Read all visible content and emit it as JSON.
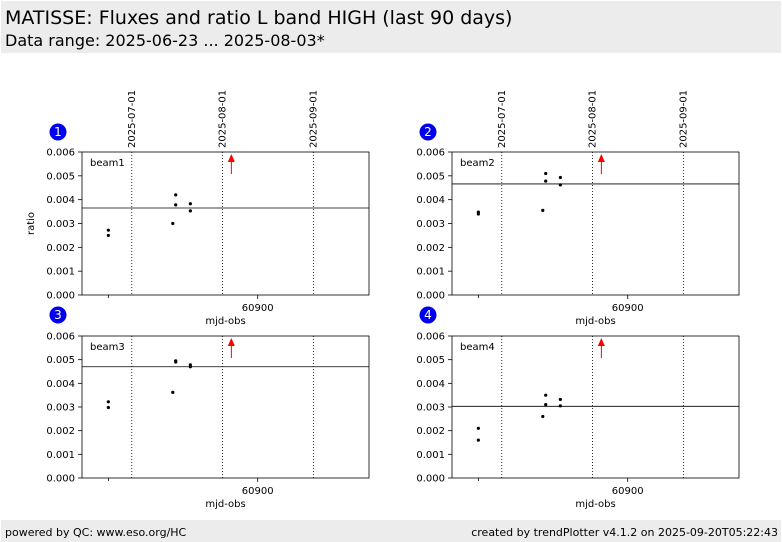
{
  "header": {
    "title": "MATISSE: Fluxes and ratio L band HIGH (last 90 days)",
    "subtitle": "Data range: 2025-06-23 ... 2025-08-03*"
  },
  "footer": {
    "left": "powered by QC: www.eso.org/HC",
    "right": "created by trendPlotter v4.1.2 on 2025-09-20T05:22:43"
  },
  "colors": {
    "header_bg": "#ececec",
    "badge": "#0000ee",
    "points": "#000000",
    "arrow": "#ff0000",
    "reference_line": "#000000"
  },
  "chart_data": [
    {
      "type": "scatter",
      "panel_number": "1",
      "label": "beam1",
      "xlabel": "mjd-obs",
      "ylabel": "ratio",
      "x_tick": 60900,
      "x_tick_label": "60900",
      "xlim": [
        60840,
        60938
      ],
      "ylim": [
        0,
        0.006
      ],
      "y_ticks": [
        "0.000",
        "0.001",
        "0.002",
        "0.003",
        "0.004",
        "0.005",
        "0.006"
      ],
      "date_markers": [
        {
          "x": 60857,
          "label": "2025-07-01"
        },
        {
          "x": 60888,
          "label": "2025-08-01"
        },
        {
          "x": 60919,
          "label": "2025-09-01"
        }
      ],
      "reference_value": 0.00365,
      "out_of_range_arrow_x": 60891,
      "points": [
        {
          "x": 60849,
          "y": 0.00272
        },
        {
          "x": 60849,
          "y": 0.0025
        },
        {
          "x": 60871,
          "y": 0.003
        },
        {
          "x": 60872,
          "y": 0.0042
        },
        {
          "x": 60872,
          "y": 0.00378
        },
        {
          "x": 60877,
          "y": 0.00383
        },
        {
          "x": 60877,
          "y": 0.00353
        }
      ]
    },
    {
      "type": "scatter",
      "panel_number": "2",
      "label": "beam2",
      "xlabel": "mjd-obs",
      "ylabel": "",
      "x_tick": 60900,
      "x_tick_label": "60900",
      "xlim": [
        60840,
        60938
      ],
      "ylim": [
        0,
        0.006
      ],
      "y_ticks": [
        "0.000",
        "0.001",
        "0.002",
        "0.003",
        "0.004",
        "0.005",
        "0.006"
      ],
      "date_markers": [
        {
          "x": 60857,
          "label": "2025-07-01"
        },
        {
          "x": 60888,
          "label": "2025-08-01"
        },
        {
          "x": 60919,
          "label": "2025-09-01"
        }
      ],
      "reference_value": 0.00466,
      "out_of_range_arrow_x": 60891,
      "points": [
        {
          "x": 60849,
          "y": 0.00348
        },
        {
          "x": 60849,
          "y": 0.0034
        },
        {
          "x": 60871,
          "y": 0.00355
        },
        {
          "x": 60872,
          "y": 0.0051
        },
        {
          "x": 60872,
          "y": 0.00478
        },
        {
          "x": 60877,
          "y": 0.00493
        },
        {
          "x": 60877,
          "y": 0.00462
        }
      ]
    },
    {
      "type": "scatter",
      "panel_number": "3",
      "label": "beam3",
      "xlabel": "mjd-obs",
      "ylabel": "",
      "x_tick": 60900,
      "x_tick_label": "60900",
      "xlim": [
        60840,
        60938
      ],
      "ylim": [
        0,
        0.006
      ],
      "y_ticks": [
        "0.000",
        "0.001",
        "0.002",
        "0.003",
        "0.004",
        "0.005",
        "0.006"
      ],
      "date_markers": [
        {
          "x": 60857,
          "label": "2025-07-01"
        },
        {
          "x": 60888,
          "label": "2025-08-01"
        },
        {
          "x": 60919,
          "label": "2025-09-01"
        }
      ],
      "reference_value": 0.0047,
      "out_of_range_arrow_x": 60891,
      "points": [
        {
          "x": 60849,
          "y": 0.00322
        },
        {
          "x": 60849,
          "y": 0.00298
        },
        {
          "x": 60871,
          "y": 0.00362
        },
        {
          "x": 60872,
          "y": 0.00495
        },
        {
          "x": 60872,
          "y": 0.0049
        },
        {
          "x": 60877,
          "y": 0.00478
        },
        {
          "x": 60877,
          "y": 0.0047
        }
      ]
    },
    {
      "type": "scatter",
      "panel_number": "4",
      "label": "beam4",
      "xlabel": "mjd-obs",
      "ylabel": "",
      "x_tick": 60900,
      "x_tick_label": "60900",
      "xlim": [
        60840,
        60938
      ],
      "ylim": [
        0,
        0.006
      ],
      "y_ticks": [
        "0.000",
        "0.001",
        "0.002",
        "0.003",
        "0.004",
        "0.005",
        "0.006"
      ],
      "date_markers": [
        {
          "x": 60857,
          "label": "2025-07-01"
        },
        {
          "x": 60888,
          "label": "2025-08-01"
        },
        {
          "x": 60919,
          "label": "2025-09-01"
        }
      ],
      "reference_value": 0.00303,
      "out_of_range_arrow_x": 60891,
      "points": [
        {
          "x": 60849,
          "y": 0.0021
        },
        {
          "x": 60849,
          "y": 0.0016
        },
        {
          "x": 60871,
          "y": 0.0026
        },
        {
          "x": 60872,
          "y": 0.0035
        },
        {
          "x": 60872,
          "y": 0.0031
        },
        {
          "x": 60877,
          "y": 0.00332
        },
        {
          "x": 60877,
          "y": 0.00305
        }
      ]
    }
  ]
}
